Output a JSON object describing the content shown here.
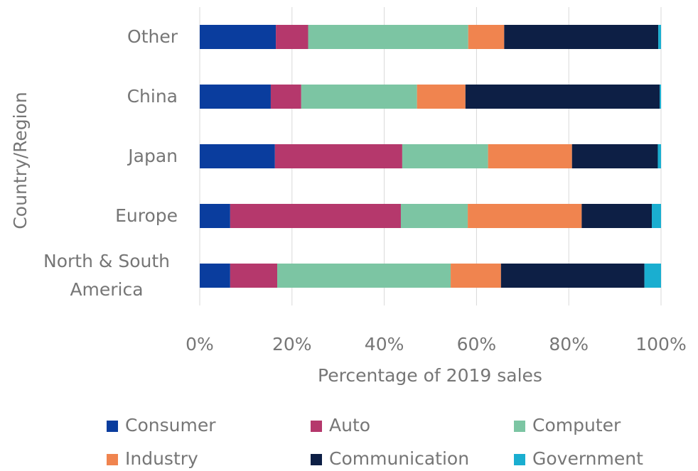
{
  "chart_data": {
    "type": "stacked-barh",
    "xlabel": "Percentage of 2019 sales",
    "ylabel": "Country/Region",
    "categories": [
      "Other",
      "China",
      "Japan",
      "Europe",
      "North & South America"
    ],
    "series": [
      {
        "name": "Consumer",
        "color": "#0a3d9e",
        "values": [
          16.5,
          15.4,
          16.3,
          6.6,
          6.6
        ]
      },
      {
        "name": "Auto",
        "color": "#b5386c",
        "values": [
          7,
          6.6,
          27.6,
          37,
          10.2
        ]
      },
      {
        "name": "Computer",
        "color": "#7cc5a3",
        "values": [
          34.7,
          25.1,
          18.6,
          14.5,
          37.6
        ]
      },
      {
        "name": "Industry",
        "color": "#f0844f",
        "values": [
          7.8,
          10.5,
          18.2,
          24.7,
          10.9
        ]
      },
      {
        "name": "Communication",
        "color": "#0d1f45",
        "values": [
          33.4,
          42.1,
          18.6,
          15.2,
          31.1
        ]
      },
      {
        "name": "Government",
        "color": "#1aaed0",
        "values": [
          0.6,
          0.3,
          0.7,
          2,
          3.6
        ]
      }
    ],
    "xlim": [
      0,
      100
    ],
    "xticks": [
      {
        "value": 0,
        "label": "0%"
      },
      {
        "value": 20,
        "label": "20%"
      },
      {
        "value": 40,
        "label": "40%"
      },
      {
        "value": 60,
        "label": "60%"
      },
      {
        "value": 80,
        "label": "80%"
      },
      {
        "value": 100,
        "label": "100%"
      }
    ],
    "grid": true,
    "legend": "bottom"
  }
}
